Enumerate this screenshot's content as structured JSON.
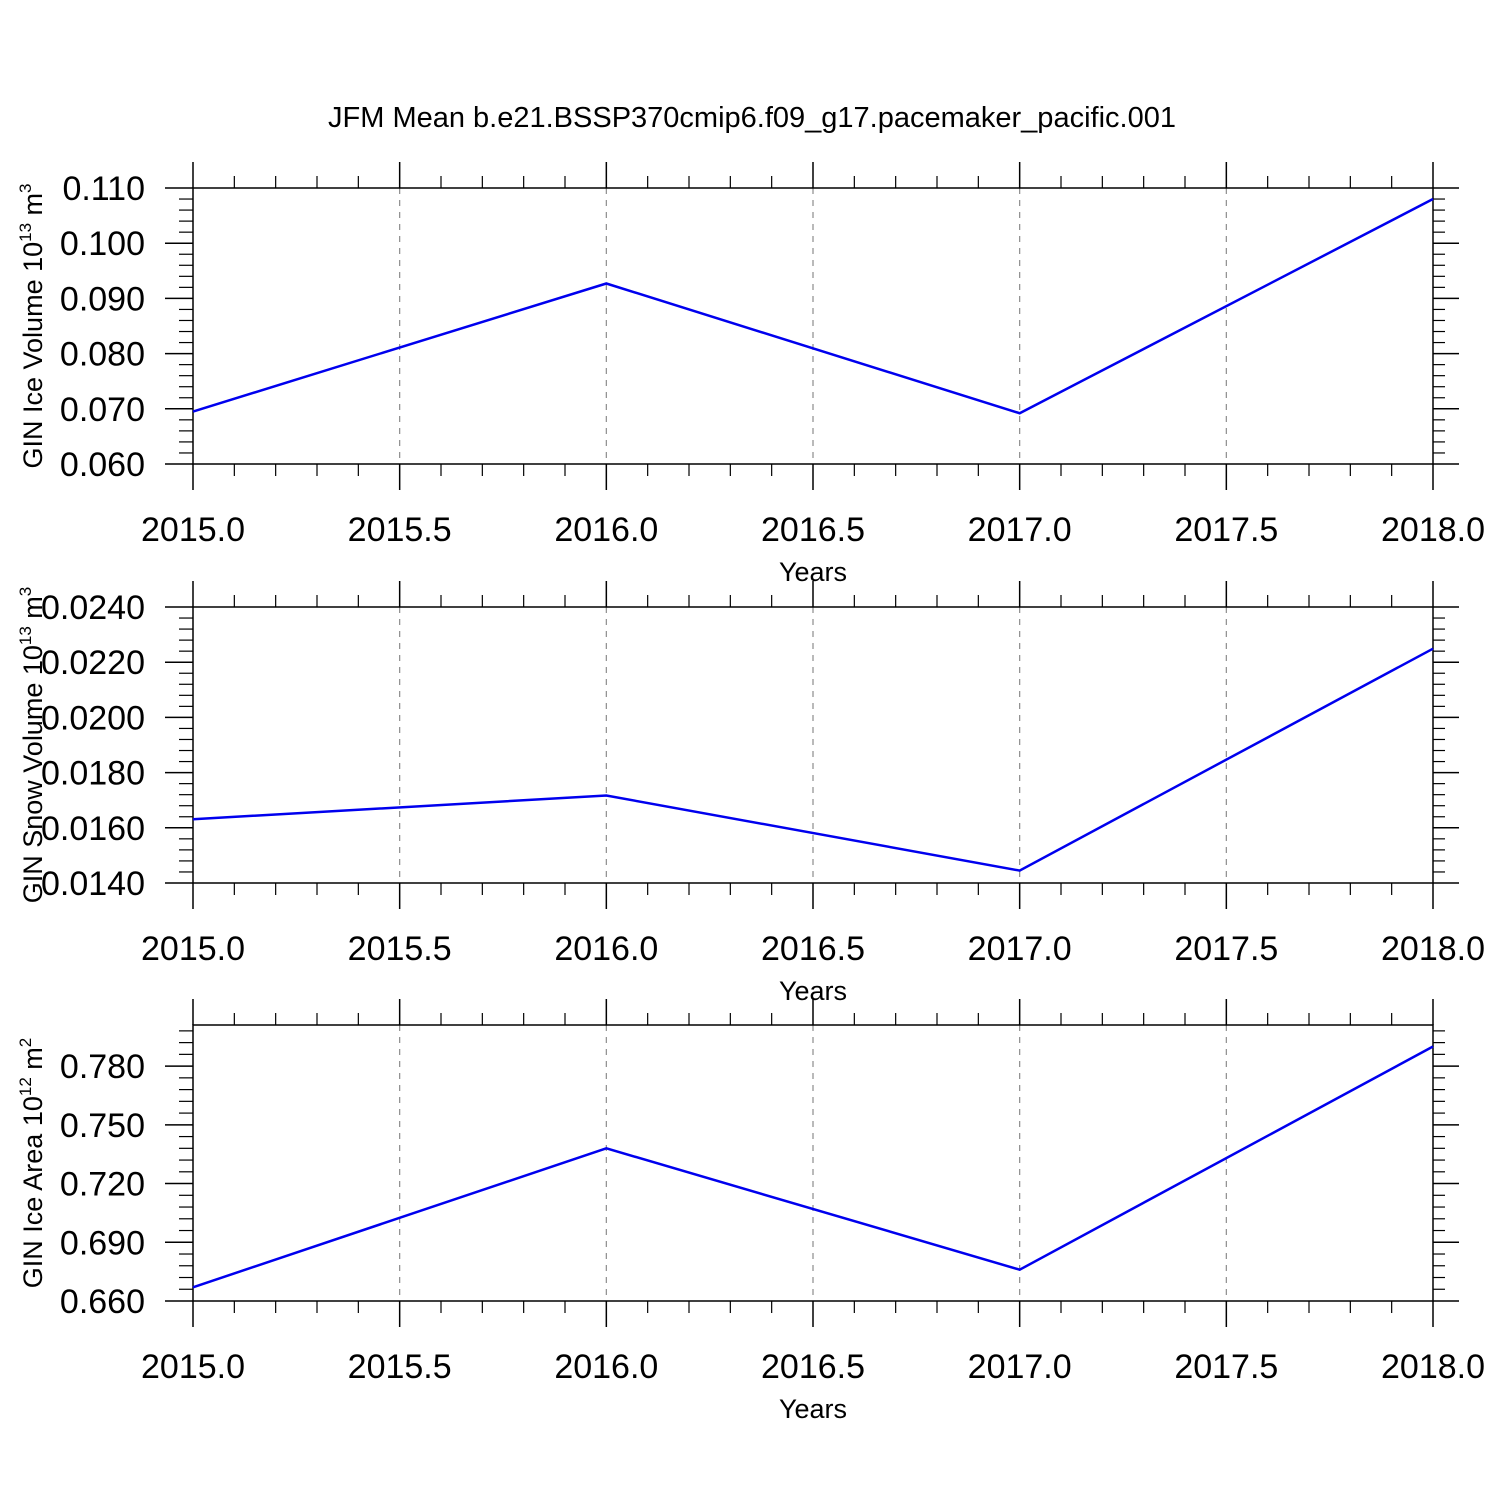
{
  "figure": {
    "title": "JFM Mean b.e21.BSSP370cmip6.f09_g17.pacemaker_pacific.001"
  },
  "colors": {
    "line": "#0000ee",
    "axis": "#000000",
    "grid": "#8c8c8c"
  },
  "chart_data": [
    {
      "type": "line",
      "xlabel": "Years",
      "ylabel": {
        "text": "GIN Ice Volume 10",
        "sup": "13",
        "unit": "m",
        "unit_sup": "3"
      },
      "xlim": [
        2015,
        2018
      ],
      "ylim": [
        0.06,
        0.11
      ],
      "xticks": [
        2015.0,
        2015.5,
        2016.0,
        2016.5,
        2017.0,
        2017.5,
        2018.0
      ],
      "xtick_labels": [
        "2015.0",
        "2015.5",
        "2016.0",
        "2016.5",
        "2017.0",
        "2017.5",
        "2018.0"
      ],
      "yticks": [
        0.06,
        0.07,
        0.08,
        0.09,
        0.1,
        0.11
      ],
      "ytick_labels": [
        "0.060",
        "0.070",
        "0.080",
        "0.090",
        "0.100",
        "0.110"
      ],
      "grid": "vertical dashed",
      "x": [
        2015,
        2016,
        2017,
        2018
      ],
      "series": [
        {
          "values": [
            0.0695,
            0.0927,
            0.0692,
            0.108
          ]
        }
      ]
    },
    {
      "type": "line",
      "xlabel": "Years",
      "ylabel": {
        "text": "GIN Snow Volume 10",
        "sup": "13",
        "unit": "m",
        "unit_sup": "3"
      },
      "xlim": [
        2015,
        2018
      ],
      "ylim": [
        0.014,
        0.024
      ],
      "xticks": [
        2015.0,
        2015.5,
        2016.0,
        2016.5,
        2017.0,
        2017.5,
        2018.0
      ],
      "xtick_labels": [
        "2015.0",
        "2015.5",
        "2016.0",
        "2016.5",
        "2017.0",
        "2017.5",
        "2018.0"
      ],
      "yticks": [
        0.014,
        0.016,
        0.018,
        0.02,
        0.022,
        0.024
      ],
      "ytick_labels": [
        "0.0140",
        "0.0160",
        "0.0180",
        "0.0200",
        "0.0220",
        "0.0240"
      ],
      "grid": "vertical dashed",
      "x": [
        2015,
        2016,
        2017,
        2018
      ],
      "series": [
        {
          "values": [
            0.01631,
            0.01717,
            0.01445,
            0.02249
          ]
        }
      ]
    },
    {
      "type": "line",
      "xlabel": "Years",
      "ylabel": {
        "text": "GIN Ice Area 10",
        "sup": "12",
        "unit": "m",
        "unit_sup": "2"
      },
      "xlim": [
        2015,
        2018
      ],
      "ylim": [
        0.66,
        0.801
      ],
      "xticks": [
        2015.0,
        2015.5,
        2016.0,
        2016.5,
        2017.0,
        2017.5,
        2018.0
      ],
      "xtick_labels": [
        "2015.0",
        "2015.5",
        "2016.0",
        "2016.5",
        "2017.0",
        "2017.5",
        "2018.0"
      ],
      "yticks": [
        0.66,
        0.69,
        0.72,
        0.75,
        0.78
      ],
      "ytick_labels": [
        "0.660",
        "0.690",
        "0.720",
        "0.750",
        "0.780"
      ],
      "grid": "vertical dashed",
      "x": [
        2015,
        2016,
        2017,
        2018
      ],
      "series": [
        {
          "values": [
            0.667,
            0.738,
            0.676,
            0.79
          ]
        }
      ]
    }
  ]
}
